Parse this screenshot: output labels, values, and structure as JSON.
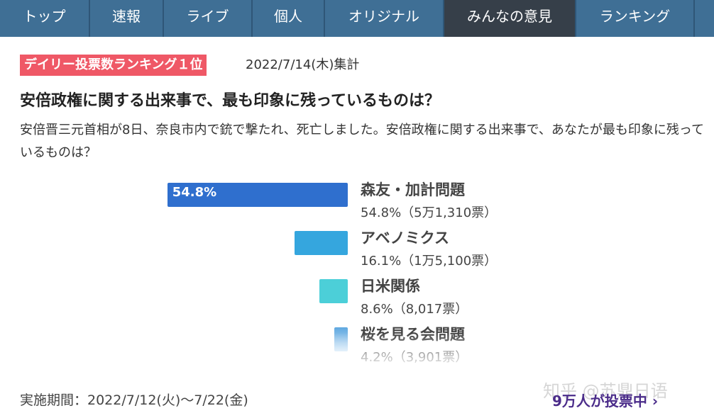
{
  "nav": {
    "items": [
      "トップ",
      "速報",
      "ライブ",
      "個人",
      "オリジナル",
      "みんなの意見",
      "ランキング"
    ],
    "active": 5
  },
  "badge": "デイリー投票数ランキング１位",
  "date": "2022/7/14(木)集計",
  "title": "安倍政権に関する出来事で、最も印象に残っているものは？",
  "description": "安倍晋三元首相が8日、奈良市内で銃で撃たれ、死亡しました。安倍政権に関する出来事で、あなたが最も印象に残っているものは？",
  "poll": {
    "options": [
      {
        "label": "森友・加計問題",
        "value": 54.8,
        "bar_label": "54.8%",
        "detail": "54.8%（5万1,310票）",
        "color": "#2f6fce"
      },
      {
        "label": "アベノミクス",
        "value": 16.1,
        "detail": "16.1%（1万5,100票）",
        "color": "#35a6de"
      },
      {
        "label": "日米関係",
        "value": 8.6,
        "detail": "8.6%（8,017票）",
        "color": "#4ccfd8"
      },
      {
        "label": "桜を見る会問題",
        "value": 4.2,
        "detail": "4.2%（3,901票）",
        "color": "#5fa8e0"
      }
    ]
  },
  "footer": {
    "period": "実施期間：2022/7/12(火)〜7/22(金)",
    "link": "9万人が投票中 ›",
    "watermark": "知乎 @苏鼎日语"
  }
}
